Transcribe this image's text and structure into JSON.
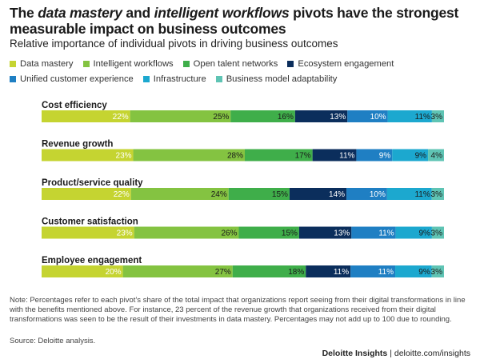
{
  "title": {
    "prefix": "The ",
    "em1": "data mastery",
    "mid": " and ",
    "em2": "intelligent workflows",
    "suffix": " pivots have the strongest measurable impact on business outcomes"
  },
  "subtitle": "Relative importance of individual pivots in driving business outcomes",
  "note": "Note: Percentages refer to each pivot’s share of the total impact that organizations report seeing from their digital transformations in line with the benefits mentioned above. For instance, 23 percent of the revenue growth that organizations received from their digital transformations was seen to be the result of their investments in data mastery. Percentages may not add up to 100 due to rounding.",
  "source": "Source: Deloitte analysis.",
  "footer": {
    "brand": "Deloitte Insights",
    "separator": "|",
    "url": "deloitte.com/insights"
  },
  "chart_data": {
    "type": "bar",
    "orientation": "horizontal",
    "stacked": true,
    "value_suffix": "%",
    "categories": [
      "Cost efficiency",
      "Revenue growth",
      "Product/service quality",
      "Customer satisfaction",
      "Employee engagement"
    ],
    "series": [
      {
        "name": "Data mastery",
        "color": "#c5d431",
        "label_color": "#ffffff",
        "values": [
          22,
          23,
          22,
          23,
          20
        ]
      },
      {
        "name": "Intelligent workflows",
        "color": "#84c341",
        "label_color": "#1a1a1a",
        "values": [
          25,
          28,
          24,
          26,
          27
        ]
      },
      {
        "name": "Open talent networks",
        "color": "#3fae4a",
        "label_color": "#1a1a1a",
        "values": [
          16,
          17,
          15,
          15,
          18
        ]
      },
      {
        "name": "Ecosystem engagement",
        "color": "#0b2e5c",
        "label_color": "#ffffff",
        "values": [
          13,
          11,
          14,
          13,
          11
        ]
      },
      {
        "name": "Unified customer experience",
        "color": "#1f7fc3",
        "label_color": "#ffffff",
        "values": [
          10,
          9,
          10,
          11,
          11
        ]
      },
      {
        "name": "Infrastructure",
        "color": "#1ca8cf",
        "label_color": "#1a1a1a",
        "values": [
          11,
          9,
          11,
          9,
          9
        ]
      },
      {
        "name": "Business model adaptability",
        "color": "#5fc4b4",
        "label_color": "#1a1a1a",
        "values": [
          3,
          4,
          3,
          3,
          3
        ]
      }
    ],
    "xlim": [
      0,
      100
    ],
    "grid": false,
    "legend_position": "top"
  }
}
